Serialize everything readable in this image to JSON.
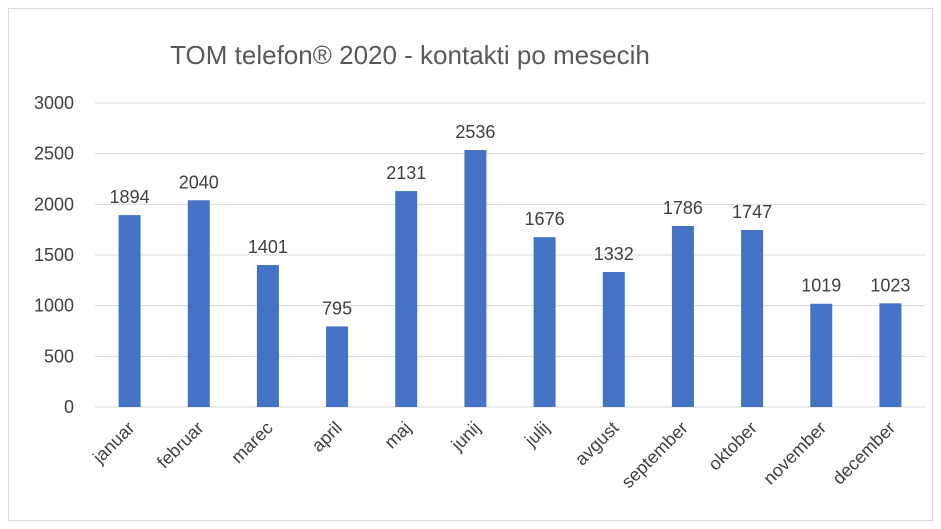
{
  "chart_data": {
    "type": "bar",
    "title": "TOM telefon® 2020 - kontakti po mesecih",
    "categories": [
      "januar",
      "februar",
      "marec",
      "april",
      "maj",
      "junij",
      "julij",
      "avgust",
      "september",
      "oktober",
      "november",
      "december"
    ],
    "values": [
      1894,
      2040,
      1401,
      795,
      2131,
      2536,
      1676,
      1332,
      1786,
      1747,
      1019,
      1023
    ],
    "color": "#4472c4",
    "ylim": [
      0,
      3000
    ],
    "yticks": [
      0,
      500,
      1000,
      1500,
      2000,
      2500,
      3000
    ],
    "grid": true,
    "data_labels": true
  }
}
